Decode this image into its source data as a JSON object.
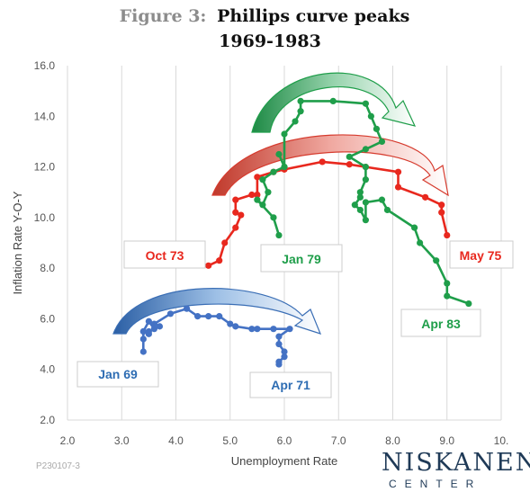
{
  "title": {
    "prefix": "Figure 3:",
    "line1": "Phillips curve peaks",
    "line2": "1969-1983"
  },
  "chart_data": {
    "type": "scatter",
    "xlabel": "Unemployment Rate",
    "ylabel": "Inflation Rate Y-O-Y",
    "xlim": [
      2.0,
      10.0
    ],
    "ylim": [
      2.0,
      16.0
    ],
    "xticks": [
      "2.0",
      "3.0",
      "4.0",
      "5.0",
      "6.0",
      "7.0",
      "8.0",
      "9.0",
      "10."
    ],
    "yticks": [
      "2.0",
      "4.0",
      "6.0",
      "8.0",
      "10.0",
      "12.0",
      "14.0",
      "16.0"
    ],
    "grid": "vertical",
    "series": [
      {
        "color": "#4472c4",
        "points": [
          [
            3.4,
            4.7
          ],
          [
            3.4,
            5.2
          ],
          [
            3.4,
            5.5
          ],
          [
            3.5,
            5.4
          ],
          [
            3.5,
            5.5
          ],
          [
            3.4,
            5.5
          ],
          [
            3.5,
            5.9
          ],
          [
            3.6,
            5.6
          ],
          [
            3.7,
            5.7
          ],
          [
            3.6,
            5.8
          ],
          [
            3.9,
            6.2
          ],
          [
            4.2,
            6.4
          ],
          [
            4.4,
            6.1
          ],
          [
            4.6,
            6.1
          ],
          [
            4.8,
            6.1
          ],
          [
            5.0,
            5.8
          ],
          [
            5.1,
            5.7
          ],
          [
            5.4,
            5.6
          ],
          [
            5.5,
            5.6
          ],
          [
            5.8,
            5.6
          ],
          [
            6.1,
            5.6
          ],
          [
            5.9,
            5.3
          ],
          [
            5.9,
            5.0
          ],
          [
            6.0,
            4.7
          ],
          [
            6.0,
            4.5
          ],
          [
            5.9,
            4.3
          ],
          [
            5.9,
            4.2
          ]
        ],
        "start_label": "Jan 69",
        "end_label": "Apr 71"
      },
      {
        "color": "#e8281e",
        "points": [
          [
            4.6,
            8.1
          ],
          [
            4.8,
            8.3
          ],
          [
            4.9,
            9.0
          ],
          [
            5.1,
            9.6
          ],
          [
            5.2,
            10.1
          ],
          [
            5.1,
            10.2
          ],
          [
            5.1,
            10.7
          ],
          [
            5.4,
            10.9
          ],
          [
            5.5,
            10.9
          ],
          [
            5.5,
            11.6
          ],
          [
            5.8,
            11.8
          ],
          [
            6.0,
            11.9
          ],
          [
            6.7,
            12.2
          ],
          [
            7.2,
            12.1
          ],
          [
            7.5,
            12.0
          ],
          [
            8.1,
            11.8
          ],
          [
            8.1,
            11.2
          ],
          [
            8.6,
            10.8
          ],
          [
            8.9,
            10.5
          ],
          [
            8.9,
            10.2
          ],
          [
            9.0,
            9.3
          ]
        ],
        "start_label": "Oct 73",
        "end_label": "May 75"
      },
      {
        "color": "#1f9e4a",
        "points": [
          [
            5.9,
            9.3
          ],
          [
            5.8,
            10.0
          ],
          [
            5.5,
            10.7
          ],
          [
            5.6,
            10.5
          ],
          [
            5.7,
            11.0
          ],
          [
            5.6,
            11.5
          ],
          [
            5.8,
            11.8
          ],
          [
            6.0,
            12.0
          ],
          [
            5.9,
            12.5
          ],
          [
            6.0,
            12.0
          ],
          [
            6.0,
            13.3
          ],
          [
            6.2,
            13.8
          ],
          [
            6.3,
            14.2
          ],
          [
            6.3,
            14.6
          ],
          [
            6.9,
            14.6
          ],
          [
            7.5,
            14.5
          ],
          [
            7.6,
            14.0
          ],
          [
            7.7,
            13.5
          ],
          [
            7.8,
            13.0
          ],
          [
            7.5,
            12.7
          ],
          [
            7.2,
            12.4
          ],
          [
            7.5,
            12.0
          ],
          [
            7.5,
            11.5
          ],
          [
            7.4,
            11.0
          ],
          [
            7.4,
            10.8
          ],
          [
            7.3,
            10.5
          ],
          [
            7.4,
            10.3
          ],
          [
            7.5,
            9.9
          ],
          [
            7.5,
            10.6
          ],
          [
            7.8,
            10.7
          ],
          [
            7.9,
            10.3
          ],
          [
            8.4,
            9.6
          ],
          [
            8.5,
            9.0
          ],
          [
            8.8,
            8.3
          ],
          [
            9.0,
            7.4
          ],
          [
            9.0,
            6.9
          ],
          [
            9.4,
            6.6
          ]
        ],
        "start_label": "Jan 79",
        "end_label": "Apr 83"
      }
    ]
  },
  "footer": {
    "code": "P230107-3",
    "logo_line1": "NISKANEN",
    "logo_line2": "CENTER"
  }
}
